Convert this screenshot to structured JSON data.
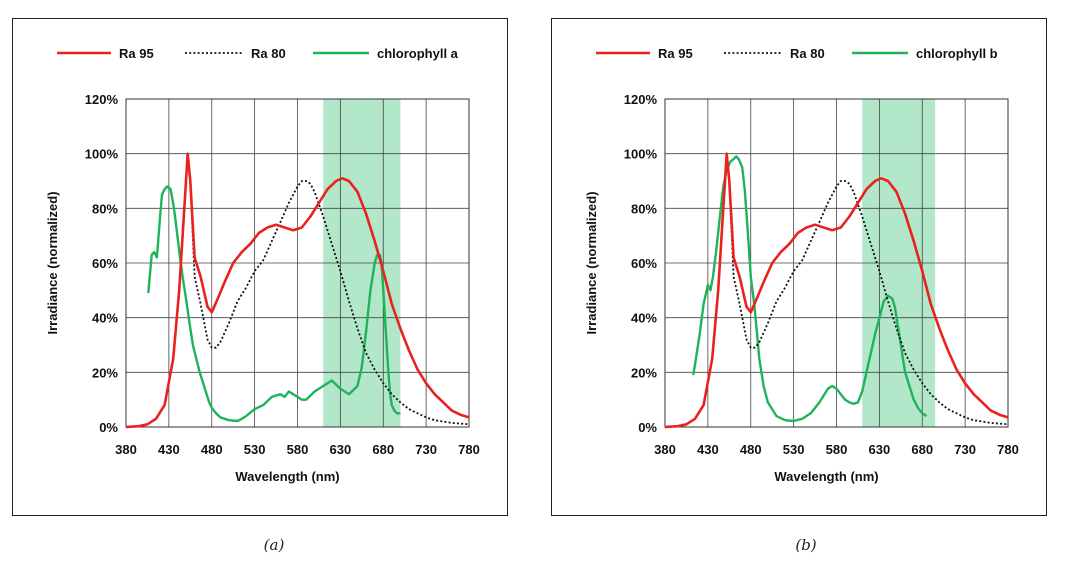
{
  "captions": [
    "(a)",
    "(b)"
  ],
  "chart_data": [
    {
      "type": "line",
      "title": "",
      "xlabel": "Wavelength (nm)",
      "ylabel": "Irradiance (normalized)",
      "xlim": [
        380,
        780
      ],
      "ylim": [
        0,
        120
      ],
      "xticks": [
        380,
        430,
        480,
        530,
        580,
        630,
        680,
        730,
        780
      ],
      "yticks": [
        0,
        20,
        40,
        60,
        80,
        100,
        120
      ],
      "ytick_labels": [
        "0%",
        "20%",
        "40%",
        "60%",
        "80%",
        "100%",
        "120%"
      ],
      "grid": true,
      "legend": "top",
      "highlight_band": {
        "x": [
          610,
          700
        ],
        "color": "#a6e3c0"
      },
      "series": [
        {
          "name": "Ra 95",
          "color": "#e8231f",
          "style": "solid",
          "x": [
            380,
            395,
            405,
            415,
            425,
            435,
            442,
            448,
            452,
            455,
            460,
            467,
            475,
            480,
            487,
            495,
            505,
            515,
            525,
            535,
            545,
            555,
            565,
            575,
            585,
            595,
            605,
            615,
            625,
            632,
            640,
            650,
            660,
            670,
            680,
            690,
            700,
            710,
            720,
            730,
            740,
            750,
            760,
            770,
            780
          ],
          "y": [
            0,
            0.3,
            1,
            3,
            8,
            25,
            50,
            80,
            100,
            90,
            62,
            55,
            44,
            42,
            47,
            53,
            60,
            64,
            67,
            71,
            73,
            74,
            73,
            72,
            73,
            77,
            82,
            87,
            90,
            91,
            90,
            86,
            78,
            68,
            57,
            45,
            36,
            28,
            21,
            16,
            12,
            9,
            6,
            4.5,
            3.5
          ]
        },
        {
          "name": "Ra 80",
          "color": "#111111",
          "style": "dotted",
          "x": [
            380,
            395,
            405,
            415,
            425,
            435,
            442,
            448,
            452,
            455,
            460,
            467,
            475,
            480,
            485,
            490,
            500,
            510,
            520,
            530,
            540,
            550,
            560,
            570,
            580,
            585,
            590,
            595,
            600,
            610,
            620,
            630,
            640,
            650,
            660,
            670,
            680,
            690,
            700,
            710,
            720,
            730,
            740,
            760,
            780
          ],
          "y": [
            0,
            0.3,
            1,
            3,
            8,
            25,
            50,
            80,
            100,
            90,
            55,
            45,
            32,
            29,
            29,
            31,
            38,
            46,
            51,
            57,
            61,
            68,
            75,
            82,
            88,
            90,
            90,
            89,
            86,
            77,
            67,
            57,
            46,
            36,
            27,
            21,
            16,
            12,
            9,
            6.5,
            5,
            3.5,
            2.5,
            1.5,
            1
          ]
        }
      ]
    },
    {
      "type": "line",
      "title": "",
      "xlabel": "Wavelength (nm)",
      "ylabel": "Irradiance (normalized)",
      "xlim": [
        380,
        780
      ],
      "ylim": [
        0,
        120
      ],
      "xticks": [
        380,
        430,
        480,
        530,
        580,
        630,
        680,
        730,
        780
      ],
      "yticks": [
        0,
        20,
        40,
        60,
        80,
        100,
        120
      ],
      "ytick_labels": [
        "0%",
        "20%",
        "40%",
        "60%",
        "80%",
        "100%",
        "120%"
      ],
      "grid": true,
      "legend": "top",
      "highlight_band": {
        "x": [
          610,
          695
        ],
        "color": "#a6e3c0"
      },
      "series": [
        {
          "name": "Ra 95",
          "color": "#e8231f",
          "style": "solid",
          "x": [
            380,
            395,
            405,
            415,
            425,
            435,
            442,
            448,
            452,
            455,
            460,
            467,
            475,
            480,
            487,
            495,
            505,
            515,
            525,
            535,
            545,
            555,
            565,
            575,
            585,
            595,
            605,
            615,
            625,
            632,
            640,
            650,
            660,
            670,
            680,
            690,
            700,
            710,
            720,
            730,
            740,
            750,
            760,
            770,
            780
          ],
          "y": [
            0,
            0.3,
            1,
            3,
            8,
            25,
            50,
            80,
            100,
            90,
            62,
            55,
            44,
            42,
            47,
            53,
            60,
            64,
            67,
            71,
            73,
            74,
            73,
            72,
            73,
            77,
            82,
            87,
            90,
            91,
            90,
            86,
            78,
            68,
            57,
            45,
            36,
            28,
            21,
            16,
            12,
            9,
            6,
            4.5,
            3.5
          ]
        },
        {
          "name": "Ra 80",
          "color": "#111111",
          "style": "dotted",
          "x": [
            380,
            395,
            405,
            415,
            425,
            435,
            442,
            448,
            452,
            455,
            460,
            467,
            475,
            480,
            485,
            490,
            500,
            510,
            520,
            530,
            540,
            550,
            560,
            570,
            580,
            585,
            590,
            595,
            600,
            610,
            620,
            630,
            640,
            650,
            660,
            670,
            680,
            690,
            700,
            710,
            720,
            730,
            740,
            760,
            780
          ],
          "y": [
            0,
            0.3,
            1,
            3,
            8,
            25,
            50,
            80,
            100,
            90,
            55,
            45,
            32,
            29,
            29,
            31,
            38,
            46,
            51,
            57,
            61,
            68,
            75,
            82,
            88,
            90,
            90,
            89,
            86,
            77,
            67,
            57,
            46,
            36,
            27,
            21,
            16,
            12,
            9,
            6.5,
            5,
            3.5,
            2.5,
            1.5,
            1
          ]
        }
      ]
    }
  ]
}
